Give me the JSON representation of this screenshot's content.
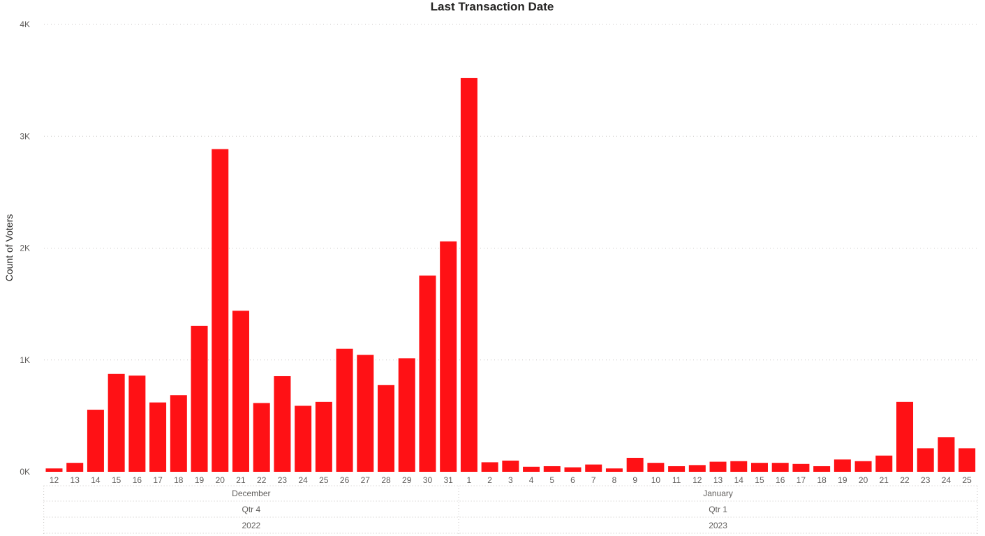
{
  "chart_data": {
    "type": "bar",
    "title": "Last Transaction Date",
    "ylabel": "Count of Voters",
    "xlabel": "",
    "ylim": [
      0,
      4000
    ],
    "yticks": [
      {
        "value": 0,
        "label": "0K"
      },
      {
        "value": 1000,
        "label": "1K"
      },
      {
        "value": 2000,
        "label": "2K"
      },
      {
        "value": 3000,
        "label": "3K"
      },
      {
        "value": 4000,
        "label": "4K"
      }
    ],
    "colors": {
      "bar": "#ff1115"
    },
    "categories": [
      "12",
      "13",
      "14",
      "15",
      "16",
      "17",
      "18",
      "19",
      "20",
      "21",
      "22",
      "23",
      "24",
      "25",
      "26",
      "27",
      "28",
      "29",
      "30",
      "31",
      "1",
      "2",
      "3",
      "4",
      "5",
      "6",
      "7",
      "8",
      "9",
      "10",
      "11",
      "12",
      "13",
      "14",
      "15",
      "16",
      "17",
      "18",
      "19",
      "20",
      "21",
      "22",
      "23",
      "24",
      "25"
    ],
    "values": [
      30,
      80,
      555,
      875,
      860,
      620,
      685,
      1305,
      2885,
      1440,
      615,
      855,
      590,
      625,
      1100,
      1045,
      775,
      1015,
      1755,
      2060,
      3520,
      85,
      100,
      45,
      50,
      40,
      65,
      30,
      125,
      80,
      50,
      60,
      90,
      95,
      80,
      80,
      70,
      50,
      110,
      95,
      145,
      625,
      210,
      310,
      210
    ],
    "hierarchy": {
      "month": [
        {
          "label": "December",
          "count": 20
        },
        {
          "label": "January",
          "count": 25
        }
      ],
      "quarter": [
        {
          "label": "Qtr 4",
          "count": 20
        },
        {
          "label": "Qtr 1",
          "count": 25
        }
      ],
      "year": [
        {
          "label": "2022",
          "count": 20
        },
        {
          "label": "2023",
          "count": 25
        }
      ]
    }
  }
}
